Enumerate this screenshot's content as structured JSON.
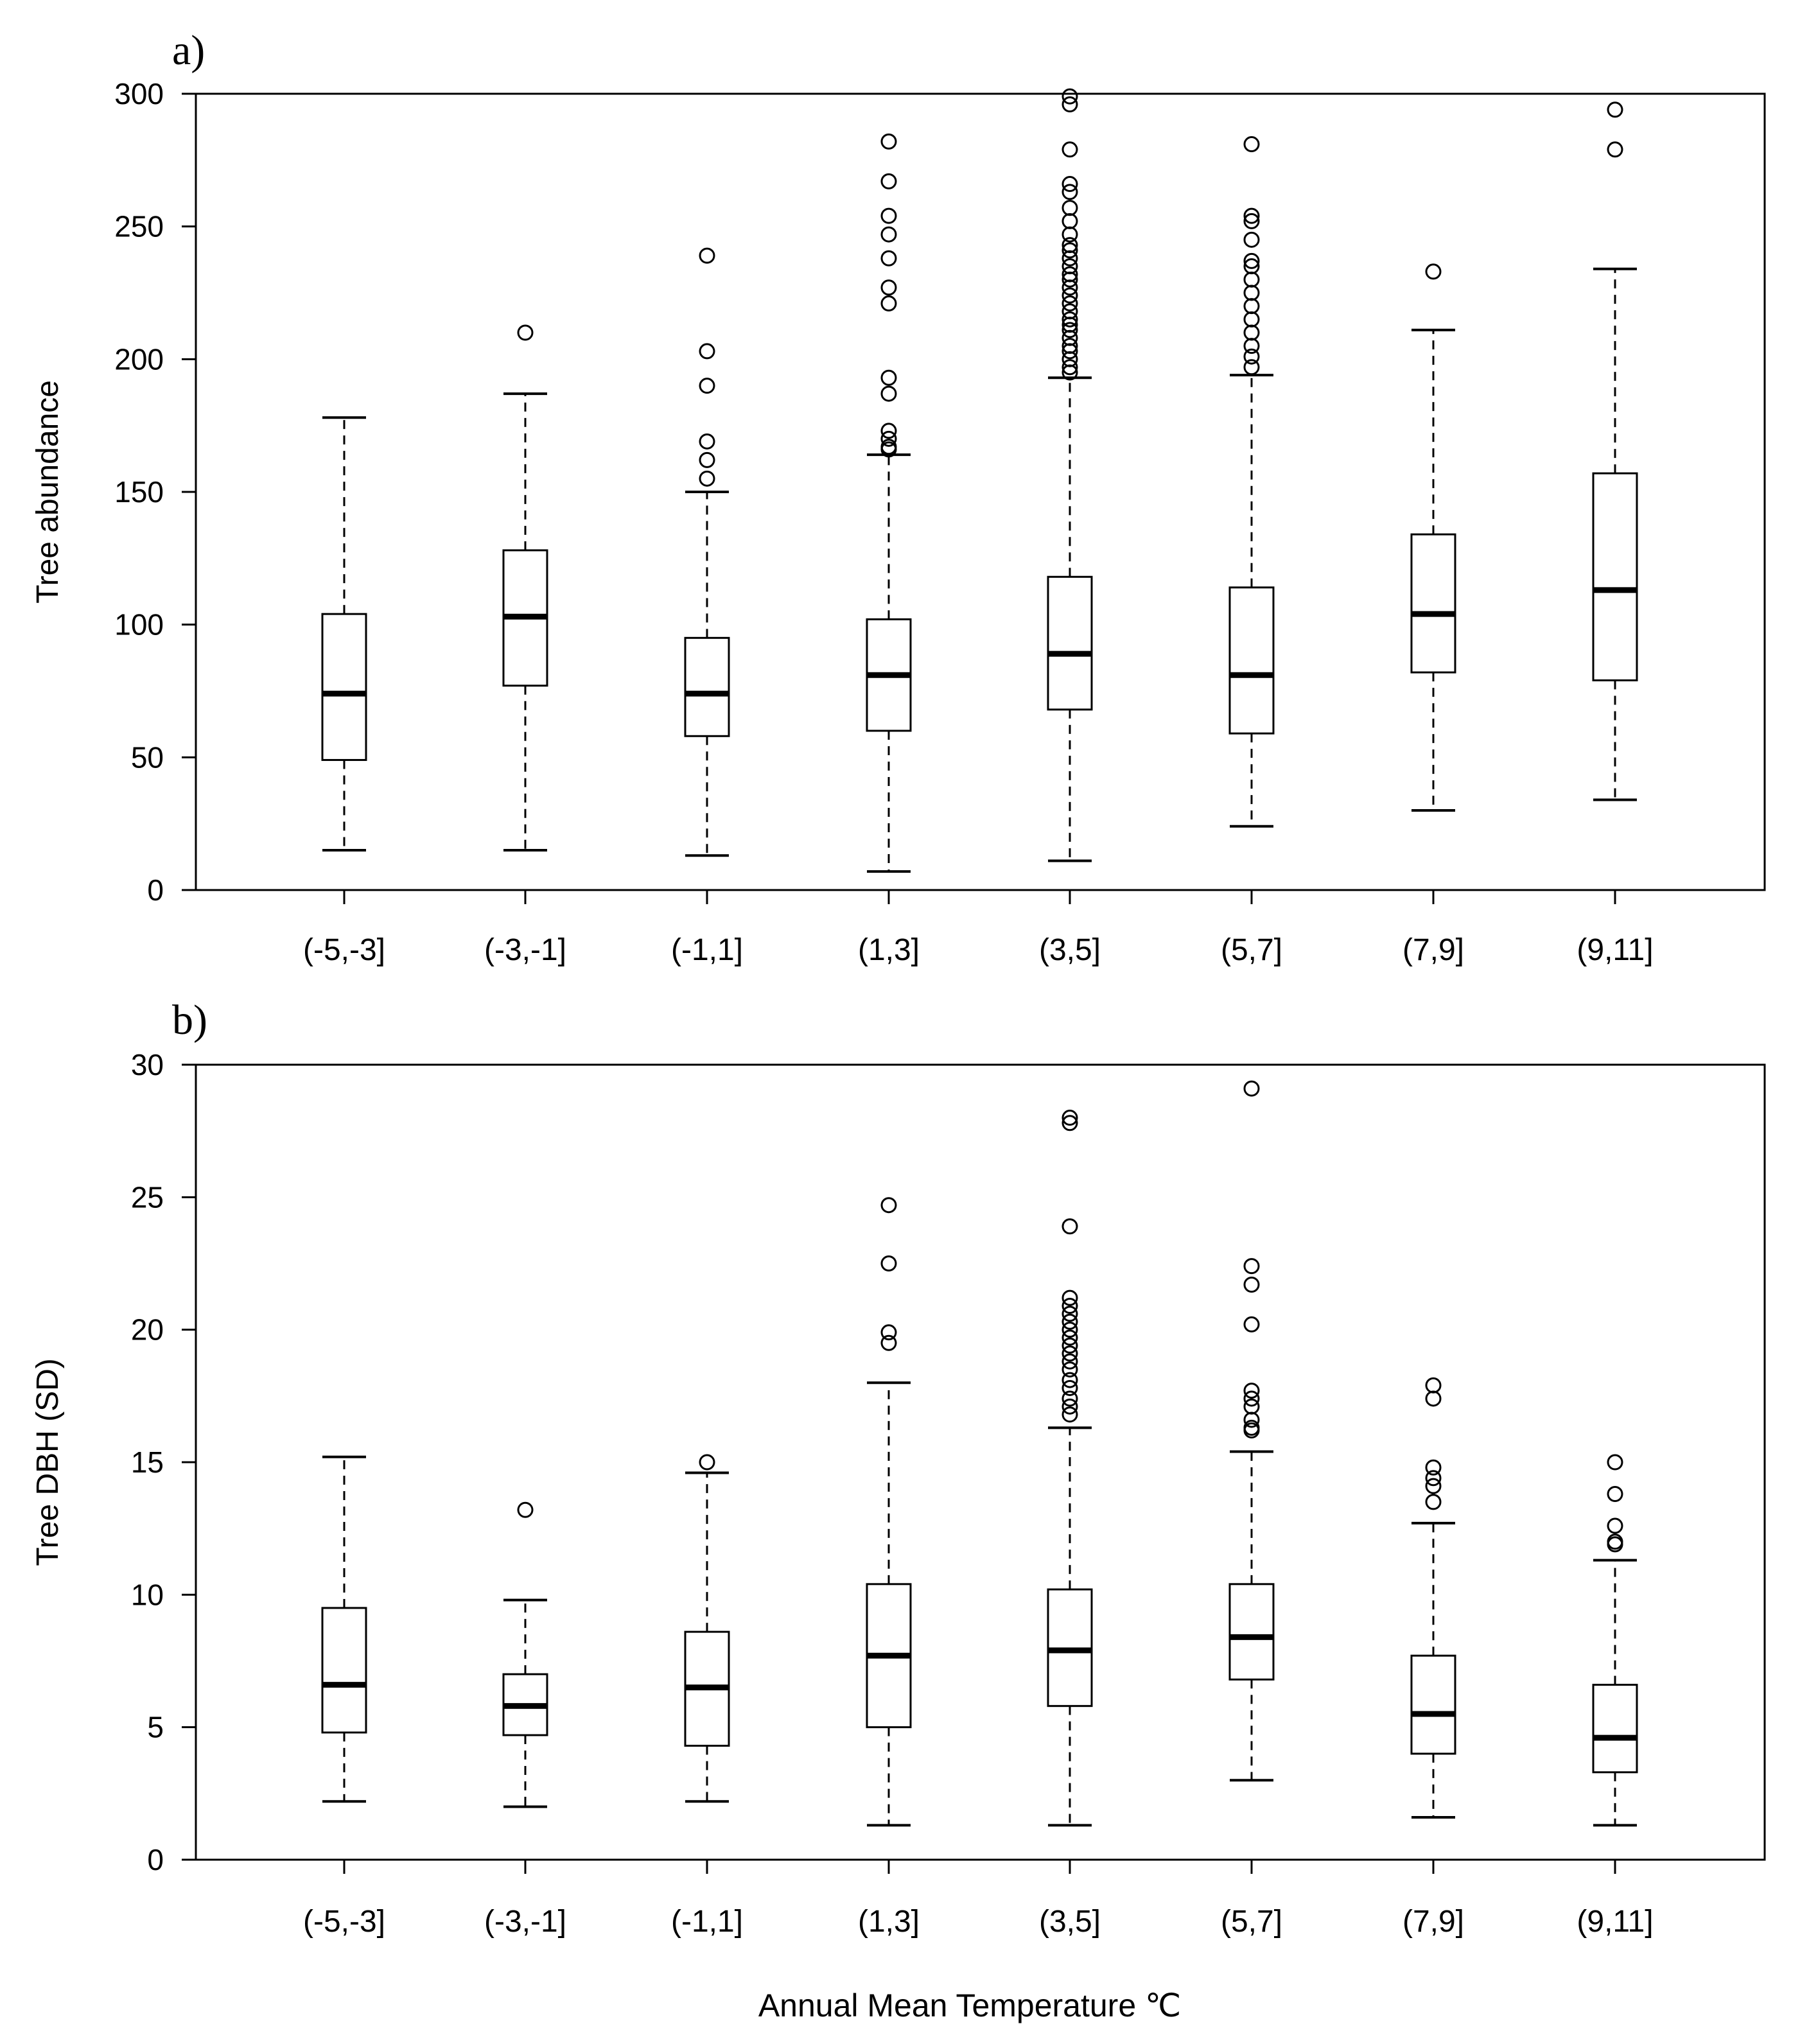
{
  "chart_data": [
    {
      "type": "boxplot",
      "panel_label": "a)",
      "ylabel": "Tree  abundance",
      "xlabel": "",
      "ylim": [
        0,
        300
      ],
      "yticks": [
        0,
        50,
        100,
        150,
        200,
        250,
        300
      ],
      "categories": [
        "(-5,-3]",
        "(-3,-1]",
        "(-1,1]",
        "(1,3]",
        "(3,5]",
        "(5,7]",
        "(7,9]",
        "(9,11]"
      ],
      "boxes": [
        {
          "whisker_low": 15,
          "q1": 49,
          "median": 74,
          "q3": 104,
          "whisker_high": 178,
          "outliers": []
        },
        {
          "whisker_low": 15,
          "q1": 77,
          "median": 103,
          "q3": 128,
          "whisker_high": 187,
          "outliers": [
            210
          ]
        },
        {
          "whisker_low": 13,
          "q1": 58,
          "median": 74,
          "q3": 95,
          "whisker_high": 150,
          "outliers": [
            155,
            162,
            169,
            190,
            203,
            239
          ]
        },
        {
          "whisker_low": 7,
          "q1": 60,
          "median": 81,
          "q3": 102,
          "whisker_high": 164,
          "outliers": [
            166,
            167,
            170,
            173,
            187,
            193,
            221,
            227,
            238,
            247,
            254,
            267,
            282
          ]
        },
        {
          "whisker_low": 11,
          "q1": 68,
          "median": 89,
          "q3": 118,
          "whisker_high": 193,
          "outliers": [
            195,
            197,
            200,
            203,
            205,
            208,
            211,
            213,
            215,
            218,
            221,
            224,
            227,
            230,
            232,
            235,
            238,
            241,
            243,
            247,
            252,
            257,
            263,
            266,
            279,
            296,
            299
          ]
        },
        {
          "whisker_low": 24,
          "q1": 59,
          "median": 81,
          "q3": 114,
          "whisker_high": 194,
          "outliers": [
            197,
            201,
            205,
            210,
            215,
            220,
            225,
            230,
            235,
            237,
            245,
            252,
            254,
            281
          ]
        },
        {
          "whisker_low": 30,
          "q1": 82,
          "median": 104,
          "q3": 134,
          "whisker_high": 211,
          "outliers": [
            233
          ]
        },
        {
          "whisker_low": 34,
          "q1": 79,
          "median": 113,
          "q3": 157,
          "whisker_high": 234,
          "outliers": [
            279,
            294
          ]
        }
      ]
    },
    {
      "type": "boxplot",
      "panel_label": "b)",
      "ylabel": "Tree  DBH (SD)",
      "xlabel": "Annual Mean Temperature ℃",
      "ylim": [
        0,
        30
      ],
      "yticks": [
        0,
        5,
        10,
        15,
        20,
        25,
        30
      ],
      "categories": [
        "(-5,-3]",
        "(-3,-1]",
        "(-1,1]",
        "(1,3]",
        "(3,5]",
        "(5,7]",
        "(7,9]",
        "(9,11]"
      ],
      "boxes": [
        {
          "whisker_low": 2.2,
          "q1": 4.8,
          "median": 6.6,
          "q3": 9.5,
          "whisker_high": 15.2,
          "outliers": []
        },
        {
          "whisker_low": 2.0,
          "q1": 4.7,
          "median": 5.8,
          "q3": 7.0,
          "whisker_high": 9.8,
          "outliers": [
            13.2
          ]
        },
        {
          "whisker_low": 2.2,
          "q1": 4.3,
          "median": 6.5,
          "q3": 8.6,
          "whisker_high": 14.6,
          "outliers": [
            15.0
          ]
        },
        {
          "whisker_low": 1.3,
          "q1": 5.0,
          "median": 7.7,
          "q3": 10.4,
          "whisker_high": 18.0,
          "outliers": [
            19.5,
            19.9,
            22.5,
            24.7
          ]
        },
        {
          "whisker_low": 1.3,
          "q1": 5.8,
          "median": 7.9,
          "q3": 10.2,
          "whisker_high": 16.3,
          "outliers": [
            16.8,
            17.1,
            17.4,
            17.8,
            18.1,
            18.5,
            18.8,
            19.1,
            19.4,
            19.7,
            20.0,
            20.3,
            20.6,
            20.9,
            21.2,
            23.9,
            27.8,
            28.0
          ]
        },
        {
          "whisker_low": 3.0,
          "q1": 6.8,
          "median": 8.4,
          "q3": 10.4,
          "whisker_high": 15.4,
          "outliers": [
            16.2,
            16.3,
            16.6,
            17.1,
            17.4,
            17.7,
            20.2,
            21.7,
            22.4,
            29.1
          ]
        },
        {
          "whisker_low": 1.6,
          "q1": 4.0,
          "median": 5.5,
          "q3": 7.7,
          "whisker_high": 12.7,
          "outliers": [
            13.5,
            14.1,
            14.4,
            14.8,
            17.4,
            17.9
          ]
        },
        {
          "whisker_low": 1.3,
          "q1": 3.3,
          "median": 4.6,
          "q3": 6.6,
          "whisker_high": 11.3,
          "outliers": [
            11.9,
            12.0,
            12.6,
            13.8,
            15.0
          ]
        }
      ]
    }
  ]
}
